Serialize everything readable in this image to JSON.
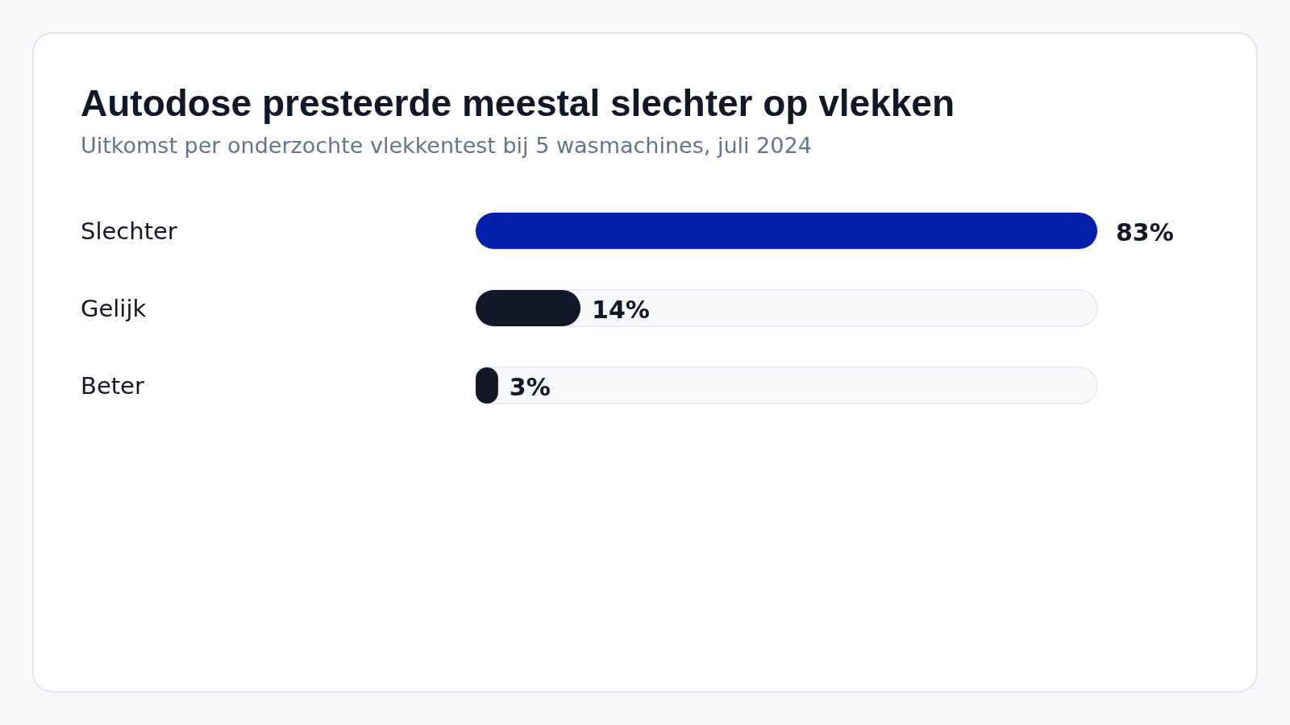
{
  "chart_data": {
    "type": "bar",
    "orientation": "horizontal",
    "title": "Autodose presteerde meestal slechter op vlekken",
    "subtitle": "Uitkomst per onderzochte vlekkentest bij 5 wasmachines, juli 2024",
    "categories": [
      "Slechter",
      "Gelijk",
      "Beter"
    ],
    "values": [
      83,
      14,
      3
    ],
    "colors": [
      "#001ea8",
      "#111827",
      "#111827"
    ],
    "value_labels": [
      "83%",
      "14%",
      "3%"
    ],
    "xlim": [
      0,
      83
    ],
    "tick_labels": false
  }
}
